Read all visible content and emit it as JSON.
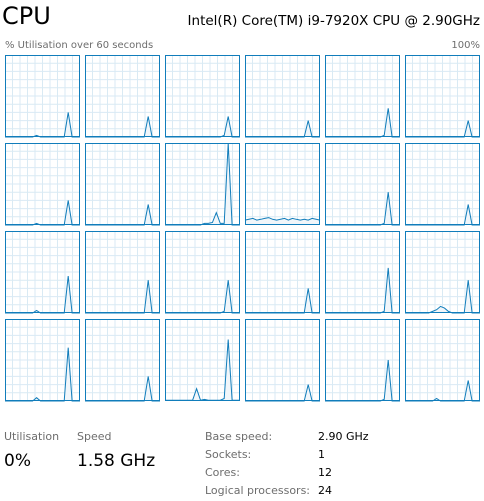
{
  "header": {
    "title": "CPU",
    "processor": "Intel(R) Core(TM) i9-7920X CPU @ 2.90GHz"
  },
  "graph": {
    "label": "% Utilisation over 60 seconds",
    "max_label": "100%",
    "ylim": [
      0,
      100
    ],
    "cores": [
      {
        "values": [
          0,
          0,
          0,
          0,
          0,
          0,
          0,
          0,
          2,
          0,
          0,
          0,
          0,
          0,
          0,
          0,
          30,
          0,
          0,
          0
        ]
      },
      {
        "values": [
          0,
          0,
          0,
          0,
          0,
          0,
          0,
          0,
          0,
          0,
          0,
          0,
          0,
          0,
          0,
          0,
          25,
          0,
          0,
          0
        ]
      },
      {
        "values": [
          0,
          0,
          0,
          0,
          0,
          0,
          0,
          0,
          0,
          0,
          0,
          0,
          0,
          0,
          0,
          2,
          25,
          0,
          0,
          0
        ]
      },
      {
        "values": [
          0,
          0,
          0,
          0,
          0,
          0,
          0,
          0,
          0,
          0,
          0,
          0,
          0,
          0,
          0,
          0,
          20,
          0,
          0,
          0
        ]
      },
      {
        "values": [
          0,
          0,
          0,
          0,
          0,
          0,
          0,
          0,
          0,
          0,
          0,
          0,
          0,
          0,
          0,
          2,
          35,
          0,
          0,
          0
        ]
      },
      {
        "values": [
          0,
          0,
          0,
          0,
          0,
          0,
          0,
          0,
          0,
          0,
          0,
          0,
          0,
          0,
          0,
          0,
          20,
          0,
          0,
          0
        ]
      },
      {
        "values": [
          0,
          0,
          0,
          0,
          0,
          0,
          0,
          0,
          2,
          0,
          0,
          0,
          0,
          0,
          0,
          0,
          30,
          0,
          0,
          0
        ]
      },
      {
        "values": [
          0,
          0,
          0,
          0,
          0,
          0,
          0,
          0,
          0,
          0,
          0,
          0,
          0,
          0,
          0,
          0,
          25,
          0,
          0,
          0
        ]
      },
      {
        "values": [
          0,
          0,
          0,
          0,
          0,
          0,
          0,
          0,
          0,
          0,
          2,
          2,
          3,
          15,
          2,
          2,
          100,
          0,
          0,
          0
        ]
      },
      {
        "values": [
          6,
          7,
          8,
          6,
          7,
          8,
          9,
          7,
          6,
          7,
          8,
          6,
          8,
          7,
          6,
          7,
          6,
          8,
          7,
          6
        ]
      },
      {
        "values": [
          0,
          0,
          0,
          0,
          0,
          0,
          0,
          0,
          0,
          0,
          0,
          0,
          0,
          0,
          0,
          2,
          40,
          0,
          0,
          0
        ]
      },
      {
        "values": [
          0,
          0,
          0,
          0,
          0,
          0,
          0,
          0,
          0,
          0,
          0,
          0,
          0,
          0,
          0,
          0,
          25,
          0,
          0,
          0
        ]
      },
      {
        "values": [
          0,
          0,
          0,
          0,
          0,
          0,
          0,
          0,
          3,
          0,
          0,
          0,
          0,
          0,
          0,
          0,
          45,
          0,
          0,
          0
        ]
      },
      {
        "values": [
          0,
          0,
          0,
          0,
          0,
          0,
          0,
          0,
          0,
          0,
          0,
          0,
          0,
          0,
          0,
          0,
          40,
          0,
          0,
          0
        ]
      },
      {
        "values": [
          0,
          0,
          0,
          0,
          0,
          0,
          0,
          0,
          0,
          0,
          0,
          0,
          0,
          0,
          0,
          2,
          40,
          0,
          0,
          0
        ]
      },
      {
        "values": [
          0,
          0,
          0,
          0,
          0,
          0,
          0,
          0,
          0,
          0,
          0,
          0,
          0,
          0,
          0,
          0,
          30,
          0,
          0,
          0
        ]
      },
      {
        "values": [
          0,
          0,
          0,
          0,
          0,
          0,
          0,
          0,
          0,
          0,
          0,
          0,
          0,
          0,
          0,
          2,
          55,
          0,
          0,
          0
        ]
      },
      {
        "values": [
          0,
          0,
          0,
          0,
          0,
          0,
          0,
          2,
          4,
          8,
          6,
          2,
          0,
          0,
          0,
          0,
          40,
          0,
          0,
          0
        ]
      },
      {
        "values": [
          0,
          0,
          0,
          0,
          0,
          0,
          0,
          0,
          4,
          0,
          0,
          0,
          0,
          0,
          0,
          0,
          65,
          0,
          0,
          0
        ]
      },
      {
        "values": [
          0,
          0,
          0,
          0,
          0,
          0,
          0,
          0,
          0,
          0,
          0,
          0,
          0,
          0,
          0,
          0,
          30,
          0,
          0,
          0
        ]
      },
      {
        "values": [
          1,
          1,
          1,
          1,
          1,
          1,
          1,
          1,
          15,
          1,
          2,
          1,
          1,
          1,
          1,
          3,
          75,
          1,
          1,
          1
        ]
      },
      {
        "values": [
          0,
          0,
          0,
          0,
          0,
          0,
          0,
          0,
          0,
          0,
          0,
          0,
          0,
          0,
          0,
          0,
          20,
          0,
          0,
          0
        ]
      },
      {
        "values": [
          0,
          0,
          0,
          0,
          0,
          0,
          0,
          0,
          0,
          0,
          0,
          0,
          0,
          0,
          0,
          2,
          50,
          0,
          0,
          0
        ]
      },
      {
        "values": [
          0,
          0,
          0,
          0,
          0,
          0,
          0,
          0,
          3,
          0,
          0,
          0,
          0,
          0,
          0,
          0,
          25,
          0,
          0,
          0
        ]
      }
    ]
  },
  "stats": {
    "utilisation": {
      "label": "Utilisation",
      "value": "0%"
    },
    "speed": {
      "label": "Speed",
      "value": "1.58 GHz"
    },
    "details": [
      {
        "label": "Base speed:",
        "value": "2.90 GHz"
      },
      {
        "label": "Sockets:",
        "value": "1"
      },
      {
        "label": "Cores:",
        "value": "12"
      },
      {
        "label": "Logical processors:",
        "value": "24"
      }
    ]
  }
}
